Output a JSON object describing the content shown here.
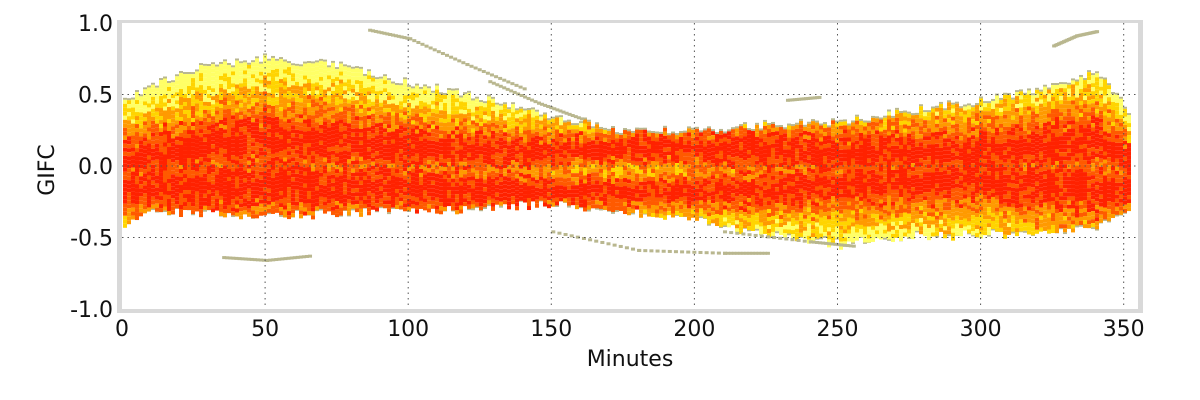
{
  "chart_data": {
    "type": "heatmap",
    "title": "",
    "xlabel": "Minutes",
    "ylabel": "GIFC",
    "xlim": [
      0,
      355
    ],
    "ylim": [
      -1.0,
      1.0
    ],
    "x_ticks": [
      0,
      50,
      100,
      150,
      200,
      250,
      300,
      350
    ],
    "y_ticks": [
      1.0,
      0.5,
      0.0,
      -0.5,
      -1.0
    ],
    "x_tick_labels": [
      "0",
      "50",
      "100",
      "150",
      "200",
      "250",
      "300",
      "350"
    ],
    "y_tick_labels": [
      "1.0",
      "0.5",
      "0.0",
      "-0.5",
      "-1.0"
    ],
    "grid": true,
    "legend": "none",
    "density_colors": [
      "#ffff66",
      "#ffd400",
      "#ff9a00",
      "#ff5a00",
      "#ff2200"
    ],
    "outline_color": "#b9b78f",
    "envelope": {
      "x": [
        0,
        10,
        25,
        50,
        75,
        100,
        125,
        150,
        175,
        200,
        225,
        250,
        275,
        300,
        325,
        340,
        352
      ],
      "upper": [
        0.45,
        0.55,
        0.68,
        0.75,
        0.7,
        0.57,
        0.47,
        0.34,
        0.24,
        0.24,
        0.28,
        0.3,
        0.38,
        0.45,
        0.55,
        0.65,
        0.35
      ],
      "lower": [
        -0.4,
        -0.3,
        -0.32,
        -0.33,
        -0.32,
        -0.3,
        -0.28,
        -0.25,
        -0.3,
        -0.37,
        -0.47,
        -0.53,
        -0.48,
        -0.46,
        -0.45,
        -0.42,
        -0.3
      ]
    },
    "series": [
      {
        "x": [
          0,
          10,
          25,
          50,
          75,
          100,
          125,
          150,
          175,
          200,
          225,
          250,
          275,
          300,
          325,
          340,
          352
        ],
        "values": [
          0.05,
          0.1,
          0.15,
          0.2,
          0.18,
          0.14,
          0.11,
          0.12,
          0.14,
          0.14,
          0.12,
          0.1,
          0.1,
          0.12,
          0.15,
          0.17,
          0.05
        ]
      },
      {
        "x": [
          0,
          10,
          25,
          50,
          75,
          100,
          125,
          150,
          175,
          200,
          225,
          250,
          275,
          300,
          325,
          340,
          352
        ],
        "values": [
          -0.15,
          -0.15,
          -0.12,
          -0.12,
          -0.13,
          -0.15,
          -0.16,
          -0.16,
          -0.18,
          -0.16,
          -0.15,
          -0.12,
          -0.1,
          -0.1,
          -0.12,
          -0.15,
          -0.15
        ]
      }
    ],
    "outliers": [
      {
        "x": [
          86,
          100,
          120,
          140
        ],
        "values": [
          0.96,
          0.9,
          0.72,
          0.55
        ]
      },
      {
        "x": [
          128,
          145,
          160
        ],
        "values": [
          0.6,
          0.45,
          0.34
        ]
      },
      {
        "x": [
          35,
          50,
          65
        ],
        "values": [
          -0.63,
          -0.65,
          -0.62
        ]
      },
      {
        "x": [
          150,
          180,
          210,
          225
        ],
        "values": [
          -0.45,
          -0.58,
          -0.6,
          -0.6
        ]
      },
      {
        "x": [
          210,
          240,
          255
        ],
        "values": [
          -0.45,
          -0.52,
          -0.55
        ]
      },
      {
        "x": [
          232,
          243
        ],
        "values": [
          0.47,
          0.49
        ]
      },
      {
        "x": [
          325,
          333,
          340
        ],
        "values": [
          0.85,
          0.92,
          0.95
        ]
      }
    ]
  }
}
